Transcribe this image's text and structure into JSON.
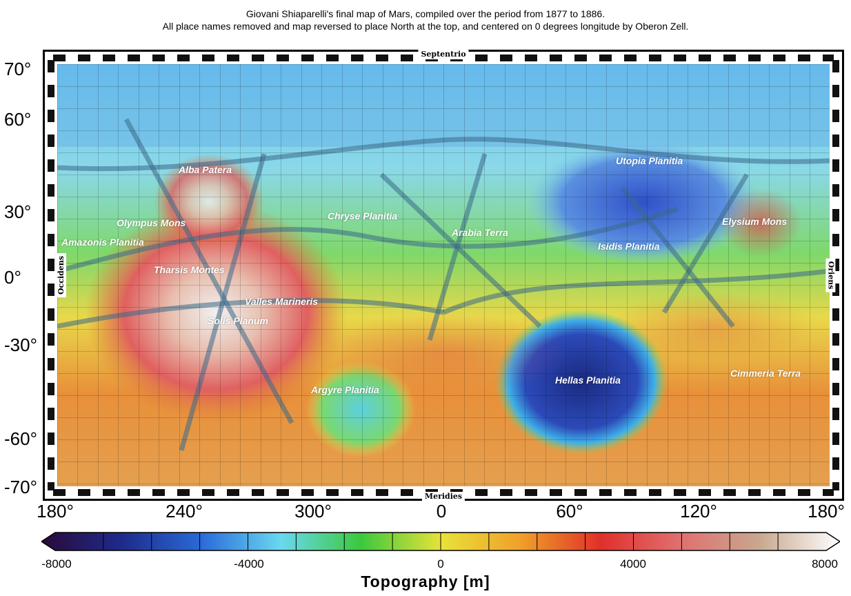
{
  "title": {
    "line1": "Giovani Shiaparelli's final map of Mars, compiled over the period from 1877 to 1886.",
    "line2": "All place names removed and map reversed to place North at the top, and centered on 0 degrees longitude by Oberon Zell."
  },
  "latitude_labels": [
    "70°",
    "60°",
    "30°",
    "0°",
    "-30°",
    "-60°",
    "-70°"
  ],
  "longitude_labels": [
    "180°",
    "240°",
    "300°",
    "0",
    "60°",
    "120°",
    "180°"
  ],
  "directions": {
    "top": "Septentrio",
    "bottom": "Meridies",
    "left": "Occidens",
    "right": "Oriens"
  },
  "regions": [
    "Alba Patera",
    "Olympus Mons",
    "Amazonis Planitia",
    "Tharsis Montes",
    "Valles Marineris",
    "Solis Planum",
    "Chryse Planitia",
    "Arabia Terra",
    "Utopia Planitia",
    "Elysium Mons",
    "Isidis Planitia",
    "Hellas Planitia",
    "Argyre Planitia",
    "Cimmeria Terra"
  ],
  "colorbar": {
    "title": "Topography [m]",
    "ticks": [
      "-8000",
      "-4000",
      "0",
      "4000",
      "8000"
    ],
    "min": -8000,
    "max": 8000,
    "colors": [
      "#2a0a3a",
      "#1e2a8a",
      "#2a6ad8",
      "#6ad8f0",
      "#3cc83c",
      "#e8e23a",
      "#f0a02a",
      "#e0302a",
      "#e07070",
      "#c8a890",
      "#ffffff"
    ]
  }
}
